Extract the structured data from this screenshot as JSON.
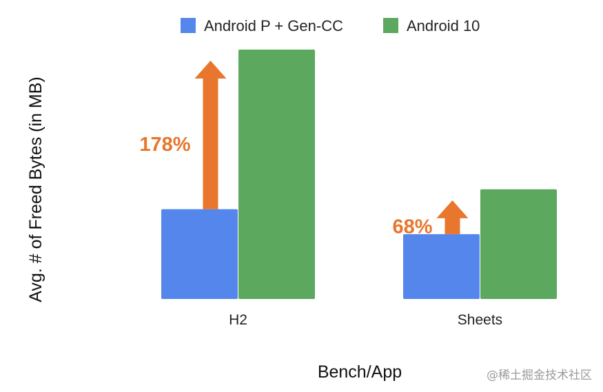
{
  "chart_data": {
    "type": "bar",
    "title": "",
    "categories": [
      "H2",
      "Sheets"
    ],
    "series": [
      {
        "name": "Android P + Gen-CC",
        "color": "#5586ec",
        "values": [
          36,
          26
        ]
      },
      {
        "name": "Android 10",
        "color": "#5ca85e",
        "values": [
          100,
          44
        ]
      }
    ],
    "xlabel": "Bench/App",
    "ylabel": "Avg. # of Freed Bytes (in MB)",
    "ylim": [
      0,
      100
    ],
    "grid": false,
    "legend_position": "top",
    "annotations": [
      {
        "category": "H2",
        "text": "178%",
        "from_series": 0,
        "to_series": 1,
        "color": "#e8762d"
      },
      {
        "category": "Sheets",
        "text": "68%",
        "from_series": 0,
        "to_series": 1,
        "color": "#e8762d"
      }
    ]
  },
  "watermark": "@稀土掘金技术社区"
}
